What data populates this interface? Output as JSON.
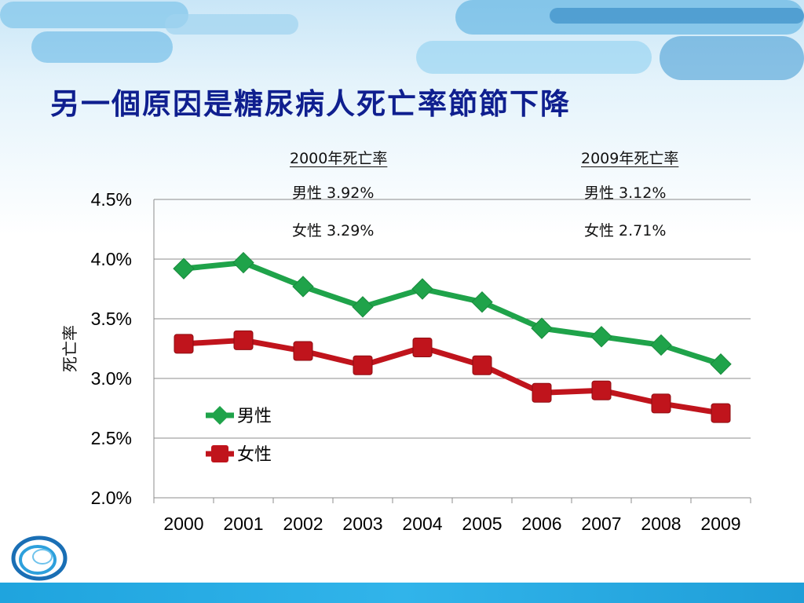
{
  "slide": {
    "title": "另一個原因是糖尿病人死亡率節節下降"
  },
  "annotations": {
    "left": {
      "heading": "2000年死亡率",
      "male": "男性 3.92%",
      "female": "女性 3.29%"
    },
    "right": {
      "heading": "2009年死亡率",
      "male": "男性 3.12%",
      "female": "女性 2.71%"
    }
  },
  "chart_data": {
    "type": "line",
    "title": "",
    "xlabel": "",
    "ylabel": "死亡率",
    "categories": [
      "2000",
      "2001",
      "2002",
      "2003",
      "2004",
      "2005",
      "2006",
      "2007",
      "2008",
      "2009"
    ],
    "y_ticks": [
      "4.5%",
      "4.0%",
      "3.5%",
      "3.0%",
      "2.5%",
      "2.0%"
    ],
    "ylim": [
      2.0,
      4.5
    ],
    "grid": true,
    "legend_position": "lower-left",
    "series": [
      {
        "name": "男性",
        "marker": "diamond",
        "color": "#1fa34a",
        "values": [
          3.92,
          3.97,
          3.77,
          3.6,
          3.75,
          3.64,
          3.42,
          3.35,
          3.28,
          3.12
        ]
      },
      {
        "name": "女性",
        "marker": "square",
        "color": "#c0141c",
        "values": [
          3.29,
          3.32,
          3.23,
          3.11,
          3.26,
          3.11,
          2.88,
          2.9,
          2.79,
          2.71
        ]
      }
    ]
  },
  "colors": {
    "title": "#0f1f8f",
    "accent": "#1fa4de"
  }
}
